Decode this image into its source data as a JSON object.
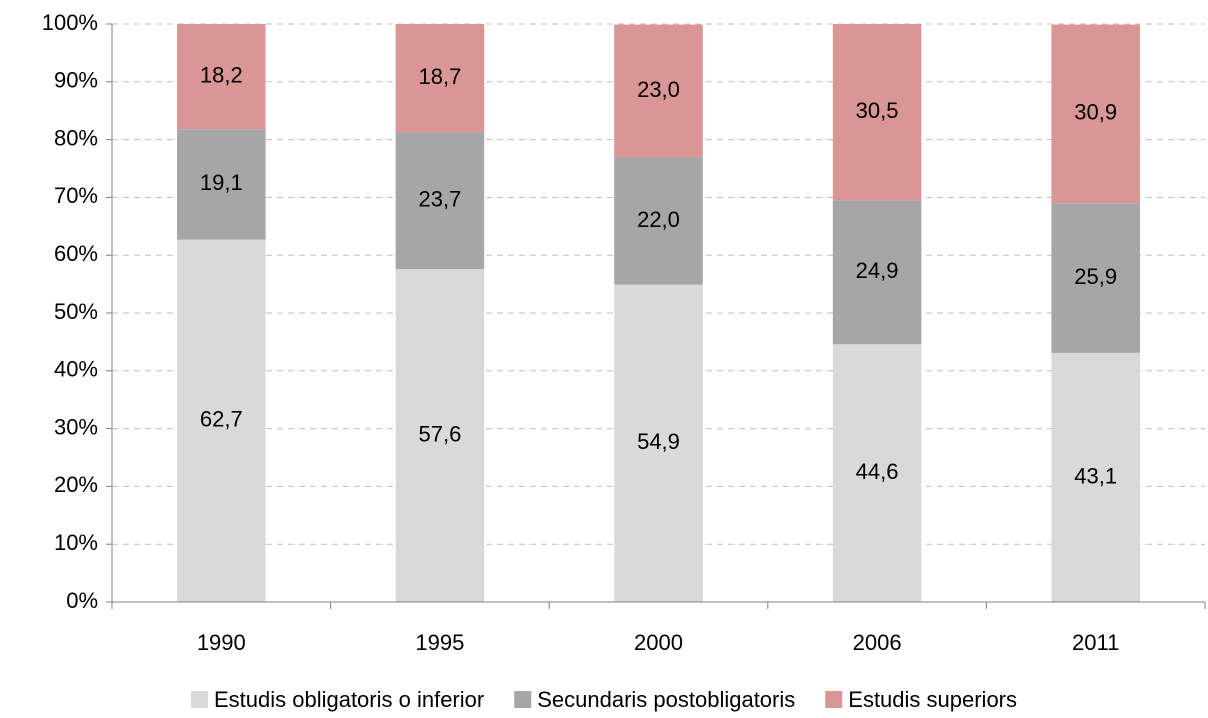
{
  "chart_data": {
    "type": "stacked_bar",
    "categories": [
      "1990",
      "1995",
      "2000",
      "2006",
      "2011"
    ],
    "series": [
      {
        "name": "Estudis obligatoris o inferior",
        "color": "#d9d9d9",
        "values": [
          62.7,
          57.6,
          54.9,
          44.6,
          43.1
        ],
        "value_labels": [
          "62,7",
          "57,6",
          "54,9",
          "44,6",
          "43,1"
        ]
      },
      {
        "name": "Secundaris postobligatoris",
        "color": "#a6a6a6",
        "values": [
          19.1,
          23.7,
          22.0,
          24.9,
          25.9
        ],
        "value_labels": [
          "19,1",
          "23,7",
          "22,0",
          "24,9",
          "25,9"
        ]
      },
      {
        "name": "Estudis superiors",
        "color": "#da9694",
        "values": [
          18.2,
          18.7,
          23.0,
          30.5,
          30.9
        ],
        "value_labels": [
          "18,2",
          "18,7",
          "23,0",
          "30,5",
          "30,9"
        ]
      }
    ],
    "ylim": [
      0,
      100
    ],
    "yticks": [
      {
        "value": 0,
        "label": "0%"
      },
      {
        "value": 10,
        "label": "10%"
      },
      {
        "value": 20,
        "label": "20%"
      },
      {
        "value": 30,
        "label": "30%"
      },
      {
        "value": 40,
        "label": "40%"
      },
      {
        "value": 50,
        "label": "50%"
      },
      {
        "value": 60,
        "label": "60%"
      },
      {
        "value": 70,
        "label": "70%"
      },
      {
        "value": 80,
        "label": "80%"
      },
      {
        "value": 90,
        "label": "90%"
      },
      {
        "value": 100,
        "label": "100%"
      }
    ],
    "grid": true,
    "legend": "bottom"
  }
}
